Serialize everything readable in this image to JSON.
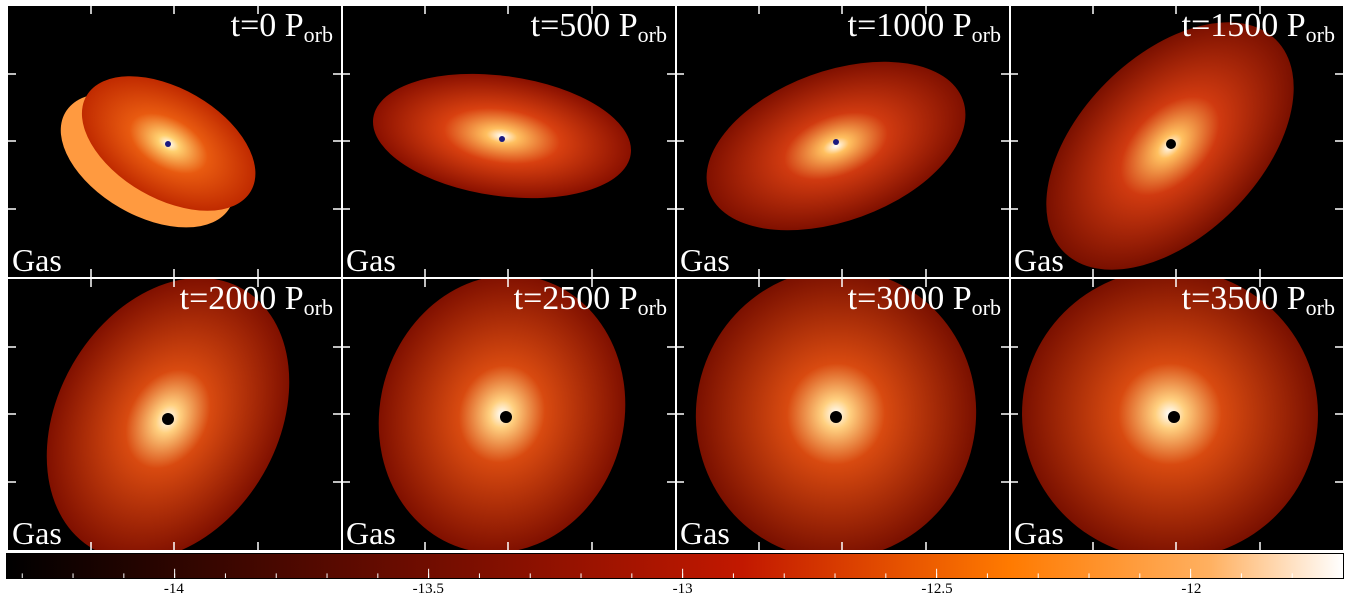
{
  "panels": [
    {
      "time": "t=0 P",
      "sub": "orb",
      "label": "Gas"
    },
    {
      "time": "t=500 P",
      "sub": "orb",
      "label": "Gas"
    },
    {
      "time": "t=1000 P",
      "sub": "orb",
      "label": "Gas"
    },
    {
      "time": "t=1500 P",
      "sub": "orb",
      "label": "Gas"
    },
    {
      "time": "t=2000 P",
      "sub": "orb",
      "label": "Gas"
    },
    {
      "time": "t=2500 P",
      "sub": "orb",
      "label": "Gas"
    },
    {
      "time": "t=3000 P",
      "sub": "orb",
      "label": "Gas"
    },
    {
      "time": "t=3500 P",
      "sub": "orb",
      "label": "Gas"
    }
  ],
  "colorbar": {
    "labels": [
      "-14",
      "-13.5",
      "-13",
      "-12.5",
      "-12"
    ],
    "min": -14.33,
    "max": -11.7,
    "colors": {
      "low": "#000000",
      "mid": "#b01000",
      "high": "#ff8a00",
      "top": "#ffffff"
    }
  }
}
